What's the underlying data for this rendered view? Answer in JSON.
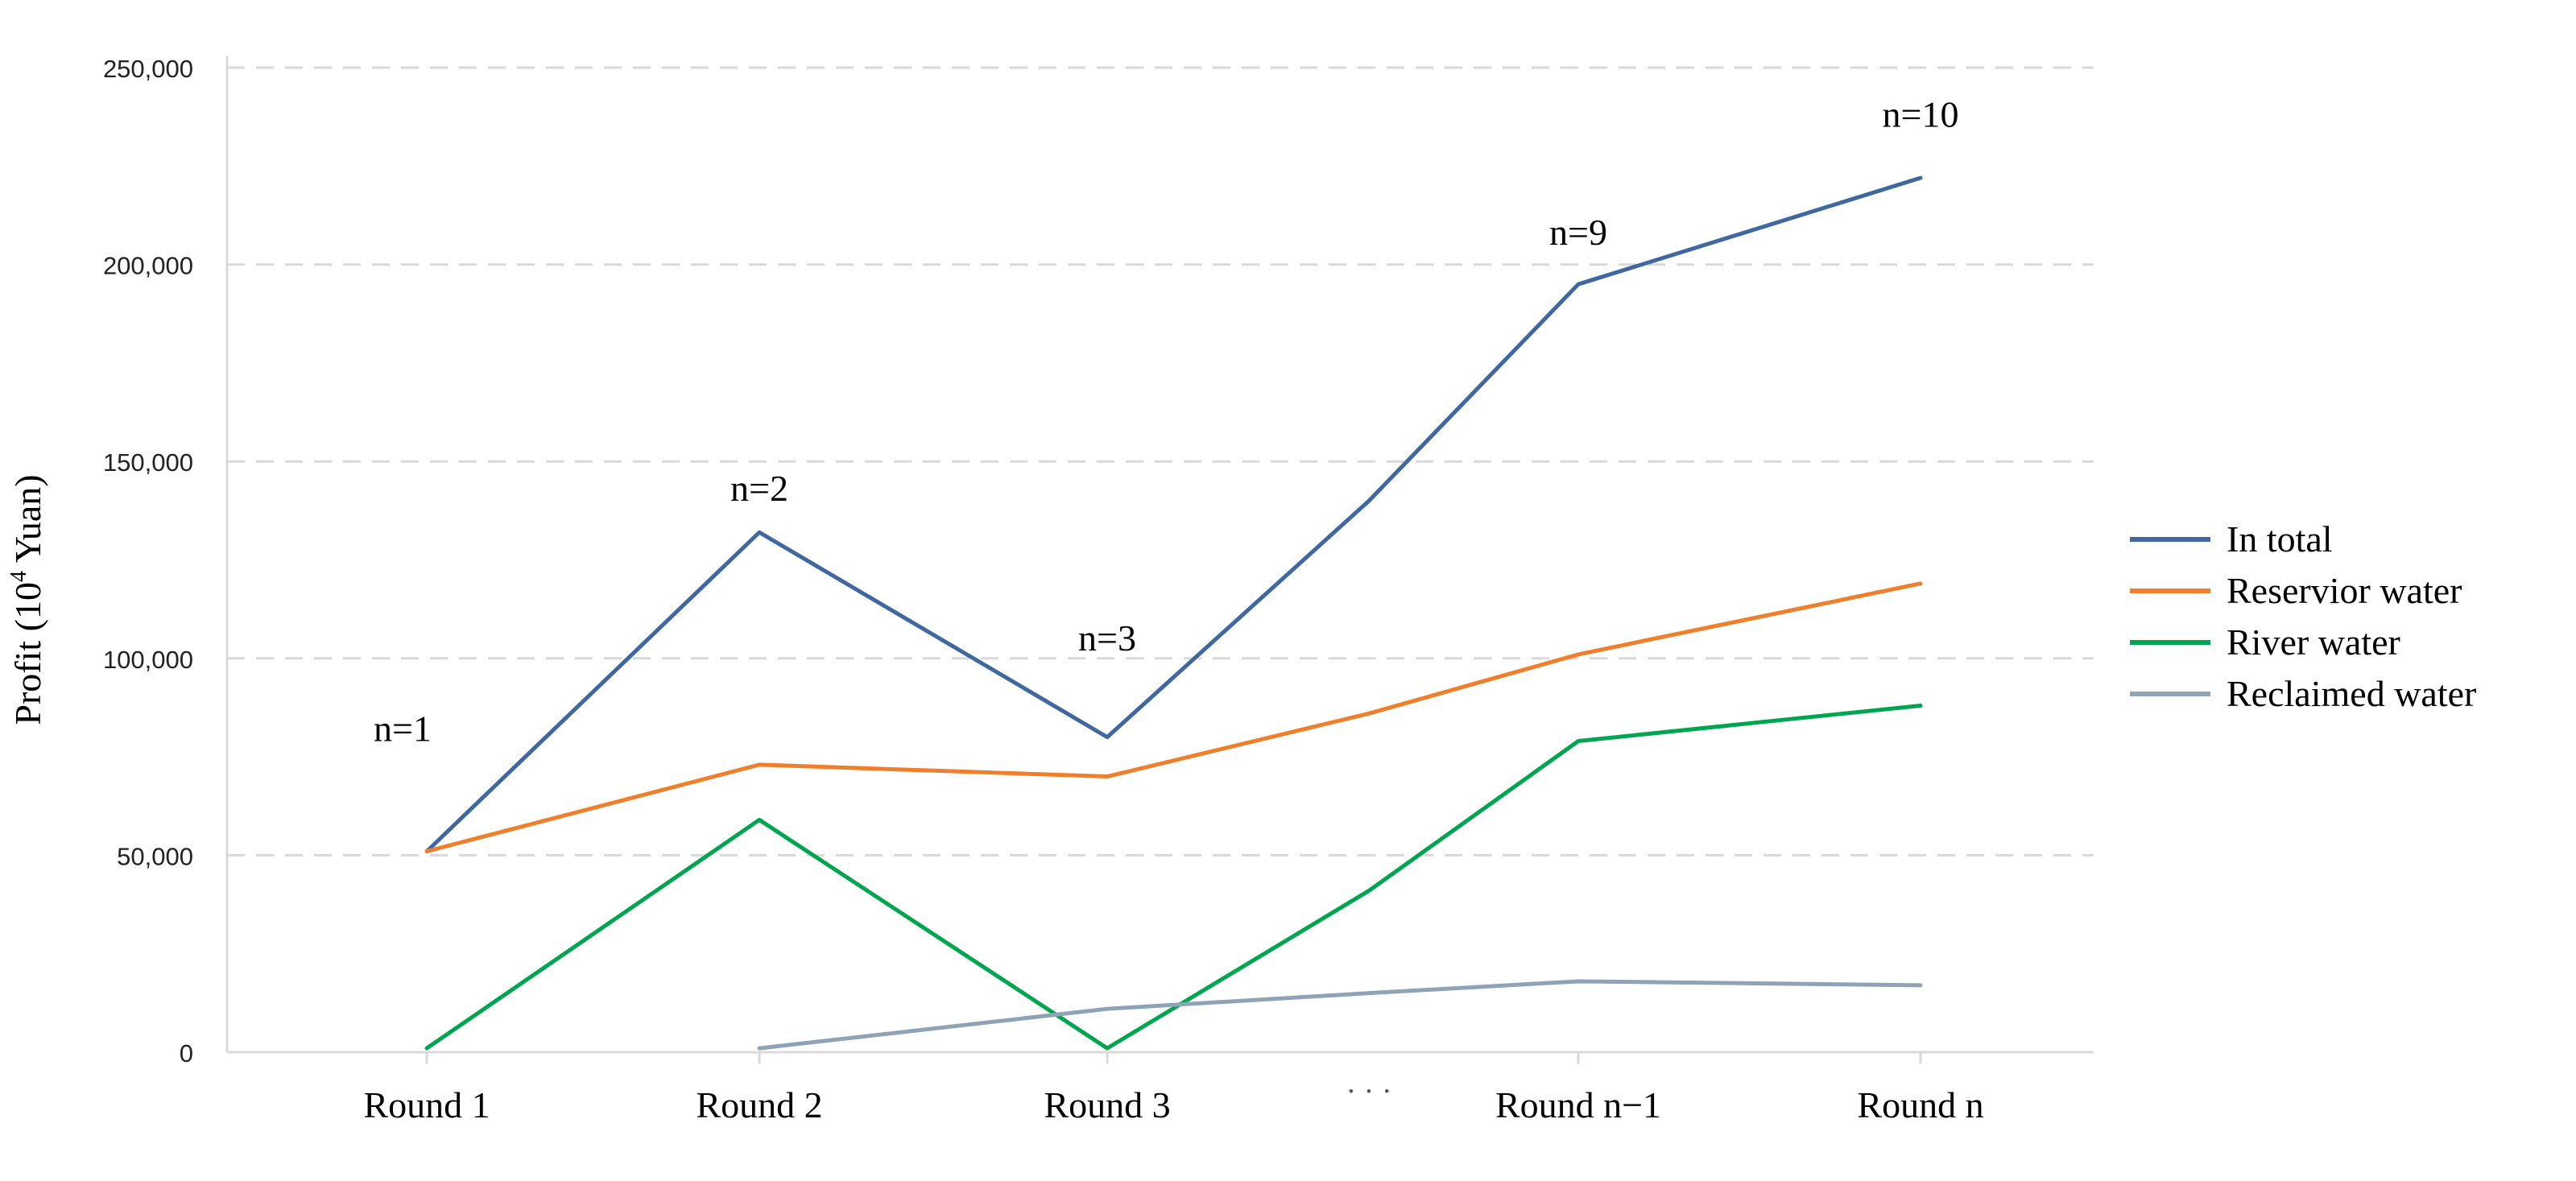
{
  "chart_data": {
    "type": "line",
    "title": "",
    "xlabel": "",
    "ylabel_main": "Profit (10",
    "ylabel_sup": "4",
    "ylabel_tail": " Yuan)",
    "ylim": [
      0,
      250000
    ],
    "grid": true,
    "legend_position": "right",
    "y_ticks": [
      0,
      50000,
      100000,
      150000,
      200000,
      250000
    ],
    "y_tick_labels": [
      "0",
      "50,000",
      "100,000",
      "150,000",
      "200,000",
      "250,000"
    ],
    "categories": [
      "Round 1",
      "Round 2",
      "Round 3",
      "· · ·",
      "Round n−1",
      "Round n"
    ],
    "series": [
      {
        "name": "In total",
        "color": "#3f67a0",
        "points": [
          [
            0,
            51000
          ],
          [
            1,
            132000
          ],
          [
            2,
            80000
          ],
          [
            3,
            140000
          ],
          [
            4,
            195000
          ],
          [
            5,
            222000
          ]
        ]
      },
      {
        "name": "Reservior water",
        "color": "#f07f2c",
        "points": [
          [
            0,
            51000
          ],
          [
            1,
            73000
          ],
          [
            2,
            70000
          ],
          [
            3,
            86000
          ],
          [
            4,
            101000
          ],
          [
            5,
            119000
          ]
        ]
      },
      {
        "name": "River water",
        "color": "#00a64f",
        "points": [
          [
            0,
            1000
          ],
          [
            1,
            59000
          ],
          [
            2,
            1000
          ],
          [
            3,
            41000
          ],
          [
            4,
            79000
          ],
          [
            5,
            88000
          ]
        ]
      },
      {
        "name": "Reclaimed water",
        "color": "#8ea3b8",
        "points": [
          [
            1,
            1000
          ],
          [
            2,
            11000
          ],
          [
            3,
            15000
          ],
          [
            4,
            18000
          ],
          [
            5,
            17000
          ]
        ]
      }
    ],
    "annotations": [
      {
        "text": "n=1",
        "x": 0,
        "y": 79000
      },
      {
        "text": "n=2",
        "x": 1,
        "y": 140000
      },
      {
        "text": "n=3",
        "x": 2,
        "y": 102000
      },
      {
        "text": "n=9",
        "x": 4,
        "y": 205000
      },
      {
        "text": "n=10",
        "x": 5,
        "y": 235000
      }
    ]
  }
}
